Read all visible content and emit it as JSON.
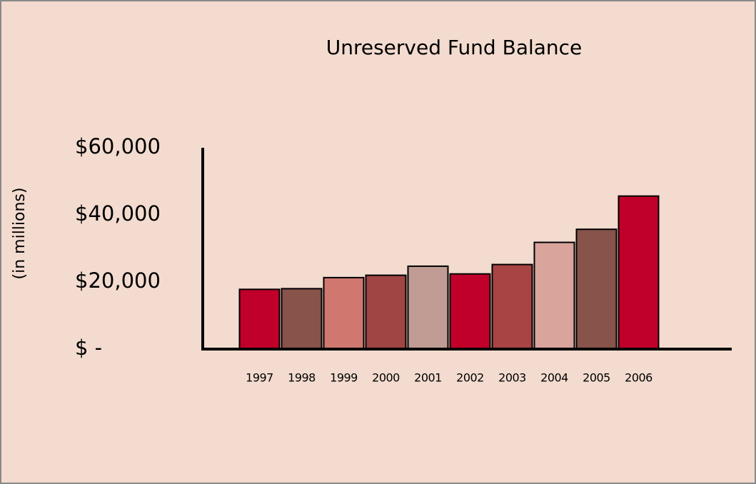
{
  "chart_data": {
    "type": "bar",
    "title": "Unreserved Fund Balance",
    "y_label": "(in millions)",
    "categories": [
      "1997",
      "1998",
      "1999",
      "2000",
      "2001",
      "2002",
      "2003",
      "2004",
      "2005",
      "2006"
    ],
    "values": [
      17800,
      18000,
      21300,
      22000,
      24700,
      22400,
      25200,
      31800,
      35700,
      45600
    ],
    "colors": [
      "#c0002a",
      "#87534b",
      "#d07870",
      "#a04444",
      "#c09c94",
      "#c0002a",
      "#a84444",
      "#d8a49c",
      "#87534b",
      "#c0002a"
    ],
    "ylim": [
      0,
      60000
    ],
    "yticks": [
      {
        "value": 0,
        "label": "$ -"
      },
      {
        "value": 20000,
        "label": "$20,000"
      },
      {
        "value": 40000,
        "label": "$40,000"
      },
      {
        "value": 60000,
        "label": "$60,000"
      }
    ],
    "grid": false
  }
}
